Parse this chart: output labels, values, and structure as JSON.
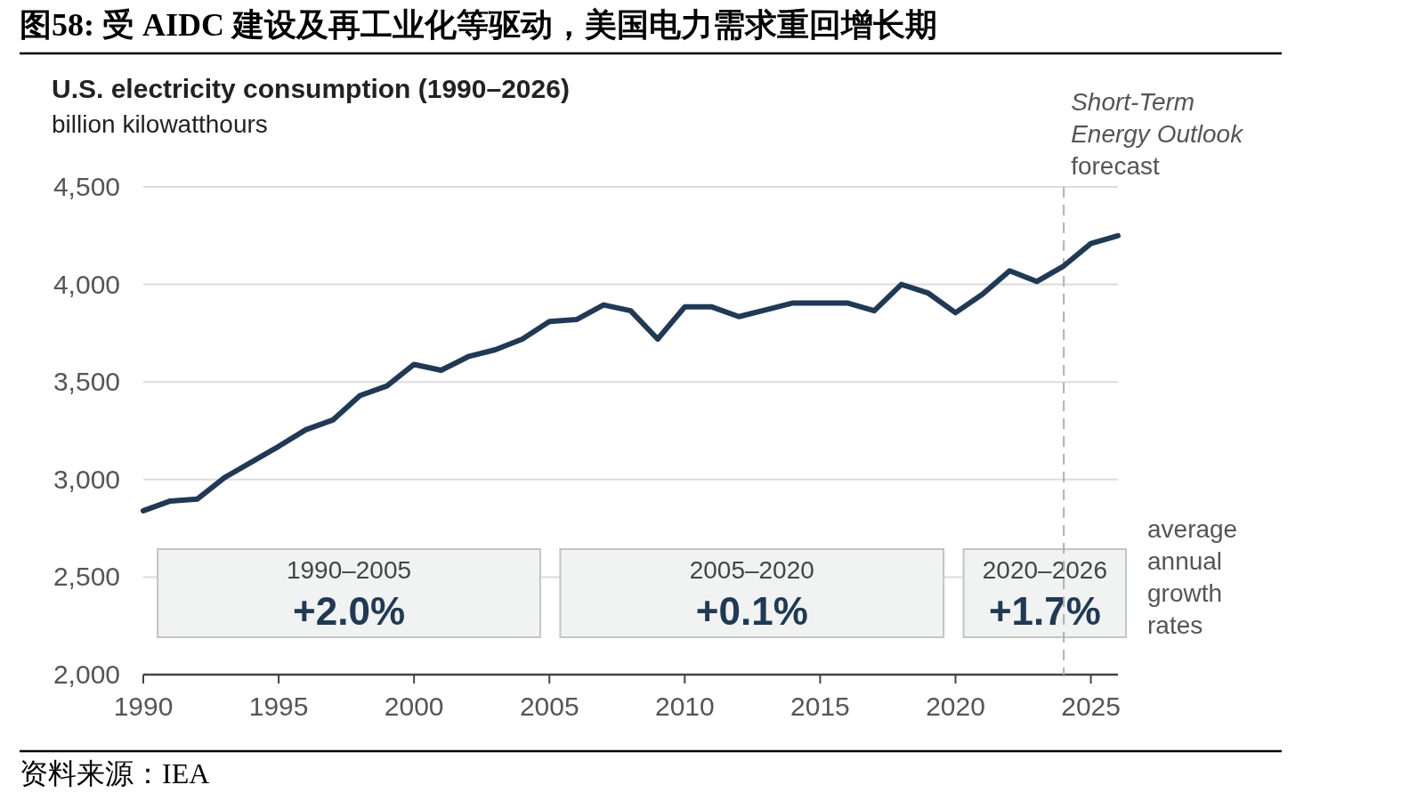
{
  "chart_data": {
    "type": "line",
    "title": "图58:  受 AIDC 建设及再工业化等驱动，美国电力需求重回增长期",
    "subtitle": "U.S. electricity consumption (1990–2026)",
    "ylabel": "billion kilowatthours",
    "annotations": [
      "1990–2005",
      "+2.0%",
      "2005–2020",
      "+0.1%",
      "2020–2026",
      "+1.7%",
      "average\nannual\ngrowth\nrates",
      "资料来源：IEA"
    ],
    "x": [
      1990,
      1991,
      1992,
      1993,
      1994,
      1995,
      1996,
      1997,
      1998,
      1999,
      2000,
      2001,
      2002,
      2003,
      2004,
      2005,
      2006,
      2007,
      2008,
      2009,
      2010,
      2011,
      2012,
      2013,
      2014,
      2015,
      2016,
      2017,
      2018,
      2019,
      2020,
      2021,
      2022,
      2023,
      2024,
      2025,
      2026
    ],
    "series": [
      {
        "color": "#203a55",
        "values": [
          2840,
          2890,
          2900,
          3010,
          3090,
          3170,
          3255,
          3305,
          3430,
          3480,
          3590,
          3560,
          3630,
          3665,
          3720,
          3810,
          3820,
          3895,
          3865,
          3720,
          3885,
          3885,
          3835,
          3870,
          3905,
          3905,
          3905,
          3865,
          4000,
          3955,
          3855,
          3950,
          4070,
          4015,
          4095,
          4210,
          4250
        ]
      }
    ],
    "xlim": [
      1990,
      2026
    ],
    "ylim": [
      2000,
      4500
    ],
    "xticks": [
      1990,
      1995,
      2000,
      2005,
      2010,
      2015,
      2020,
      2025
    ],
    "yticks": [
      {
        "value": 2000,
        "label": "2,000"
      },
      {
        "value": 2500,
        "label": "2,500"
      },
      {
        "value": 3000,
        "label": "3,000"
      },
      {
        "value": 3500,
        "label": "3,500"
      },
      {
        "value": 4000,
        "label": "4,000"
      },
      {
        "value": 4500,
        "label": "4,500"
      }
    ],
    "grid": "y",
    "line_style": "solid",
    "ref_lines": [
      {
        "axis": "x",
        "value": 2024,
        "label": "Short-Term\nEnergy Outlook\nforecast",
        "color": "#b0b0b0",
        "line_style": "dashed"
      }
    ]
  }
}
